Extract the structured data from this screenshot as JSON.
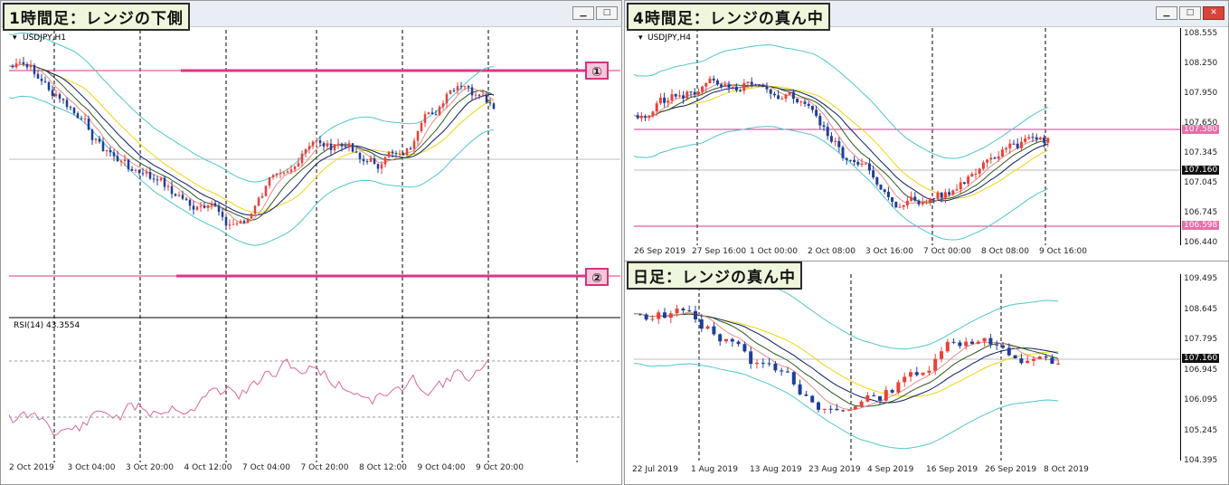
{
  "panels": {
    "h1": {
      "label": "1時間足：レンジの下側",
      "symbol": "USDJPY,H1",
      "rsi_label": "RSI(14) 43.3554",
      "x_ticks": [
        "2 Oct 2019",
        "3 Oct 04:00",
        "3 Oct 20:00",
        "4 Oct 12:00",
        "7 Oct 04:00",
        "7 Oct 20:00",
        "8 Oct 12:00",
        "9 Oct 04:00",
        "9 Oct 20:00"
      ],
      "markers": [
        "①",
        "②"
      ]
    },
    "h4": {
      "label": "4時間足：レンジの真ん中",
      "symbol": "USDJPY,H4",
      "price_ticks": [
        "108.555",
        "108.250",
        "107.950",
        "107.650",
        "107.345",
        "107.045",
        "106.745",
        "106.440"
      ],
      "x_ticks": [
        "26 Sep 2019",
        "27 Sep 16:00",
        "1 Oct 00:00",
        "2 Oct 08:00",
        "3 Oct 16:00",
        "7 Oct 00:00",
        "8 Oct 08:00",
        "9 Oct 16:00"
      ],
      "tags": {
        "upper": "107.580",
        "current": "107.160",
        "lower": "106.598"
      }
    },
    "d1": {
      "label": "日足：レンジの真ん中",
      "price_ticks": [
        "109.495",
        "108.645",
        "107.795",
        "106.945",
        "106.095",
        "105.245",
        "104.395"
      ],
      "x_ticks": [
        "22 Jul 2019",
        "1 Aug 2019",
        "13 Aug 2019",
        "23 Aug 2019",
        "4 Sep 2019",
        "16 Sep 2019",
        "26 Sep 2019",
        "8 Oct 2019"
      ],
      "tags": {
        "current": "107.160"
      }
    }
  },
  "colors": {
    "bull": "#e8413a",
    "bear": "#1f3e9a",
    "pink": "#e0338a",
    "band": "#4fc6cc",
    "ma_yellow": "#f2d40c",
    "ma_navy": "#0d1c66"
  }
}
